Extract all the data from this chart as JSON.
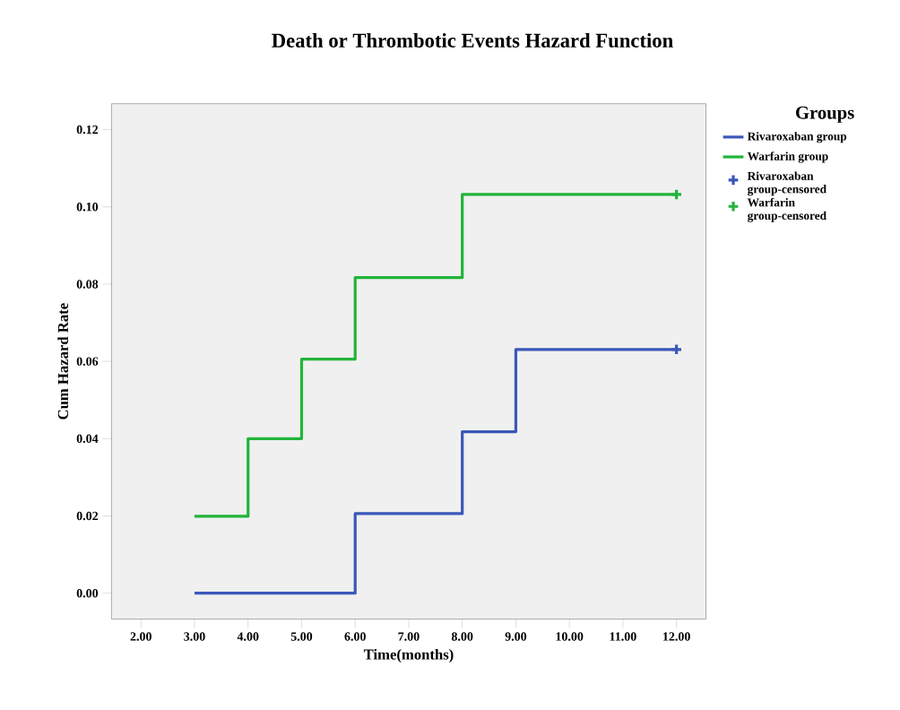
{
  "chart_data": {
    "type": "step",
    "title": "Death or Thrombotic Events Hazard Function",
    "xlabel": "Time(months)",
    "ylabel": "Cum Hazard Rate",
    "legend_title": "Groups",
    "legend": "right",
    "xlim": [
      1.45,
      12.55
    ],
    "ylim": [
      -0.0067,
      0.1267
    ],
    "xticks": [
      {
        "value": 2,
        "label": "2.00"
      },
      {
        "value": 3,
        "label": "3.00"
      },
      {
        "value": 4,
        "label": "4.00"
      },
      {
        "value": 5,
        "label": "5.00"
      },
      {
        "value": 6,
        "label": "6.00"
      },
      {
        "value": 7,
        "label": "7.00"
      },
      {
        "value": 8,
        "label": "8.00"
      },
      {
        "value": 9,
        "label": "9.00"
      },
      {
        "value": 10,
        "label": "10.00"
      },
      {
        "value": 11,
        "label": "11.00"
      },
      {
        "value": 12,
        "label": "12.00"
      }
    ],
    "yticks": [
      {
        "value": 0,
        "label": "0.00"
      },
      {
        "value": 0.02,
        "label": "0.02"
      },
      {
        "value": 0.04,
        "label": "0.04"
      },
      {
        "value": 0.06,
        "label": "0.06"
      },
      {
        "value": 0.08,
        "label": "0.08"
      },
      {
        "value": 0.1,
        "label": "0.10"
      },
      {
        "value": 0.12,
        "label": "0.12"
      }
    ],
    "series": [
      {
        "name": "Rivaroxaban group",
        "marker": "none",
        "color": "#3b57b8",
        "x": [
          3,
          6,
          8,
          9,
          12
        ],
        "values": [
          0,
          0.0206,
          0.0418,
          0.0631,
          0.0631
        ]
      },
      {
        "name": "Warfarin group",
        "marker": "none",
        "color": "#22b43a",
        "x": [
          3,
          4,
          5,
          6,
          8,
          12
        ],
        "values": [
          0.0199,
          0.04,
          0.0606,
          0.0817,
          0.1032,
          0.1032
        ]
      },
      {
        "name": "Rivaroxaban group-censored",
        "type": "scatter",
        "marker": "cross",
        "color": "#3b57b8",
        "x": [
          12
        ],
        "values": [
          0.0631
        ]
      },
      {
        "name": "Warfarin group-censored",
        "type": "scatter",
        "marker": "cross",
        "color": "#22b43a",
        "x": [
          12
        ],
        "values": [
          0.1032
        ]
      }
    ]
  }
}
